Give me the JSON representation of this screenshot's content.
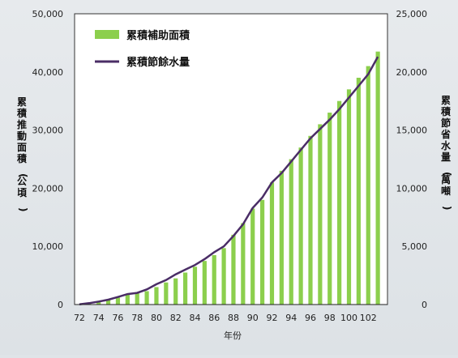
{
  "chart_data": {
    "type": "bar",
    "title": "",
    "xlabel": "年份",
    "ylabel_left": "累積推動面積(公頃)",
    "ylabel_right": "累積節省水量(萬噸)",
    "x_ticks": [
      "72",
      "74",
      "76",
      "78",
      "80",
      "82",
      "84",
      "86",
      "88",
      "90",
      "92",
      "94",
      "96",
      "98",
      "100",
      "102"
    ],
    "x": [
      72,
      73,
      74,
      75,
      76,
      77,
      78,
      79,
      80,
      81,
      82,
      83,
      84,
      85,
      86,
      87,
      88,
      89,
      90,
      91,
      92,
      93,
      94,
      95,
      96,
      97,
      98,
      99,
      100,
      101,
      102,
      103
    ],
    "ylim_left": [
      0,
      50000
    ],
    "ylim_right": [
      0,
      25000
    ],
    "yticks_left": [
      "0",
      "10,000",
      "20,000",
      "30,000",
      "40,000",
      "50,000"
    ],
    "yticks_right": [
      "0",
      "5,000",
      "10,000",
      "15,000",
      "20,000",
      "25,000"
    ],
    "legend_position": "top-left",
    "series": [
      {
        "name": "累積補助面積",
        "type": "bar",
        "axis": "left",
        "color": "#8ccf4d",
        "values": [
          50,
          200,
          400,
          800,
          1200,
          1700,
          2000,
          2300,
          3000,
          3800,
          4500,
          5500,
          6500,
          7500,
          8500,
          9700,
          12000,
          14000,
          16500,
          18000,
          21000,
          23000,
          25000,
          27000,
          29000,
          31000,
          33000,
          35000,
          37000,
          39000,
          41000,
          43500
        ]
      },
      {
        "name": "累積節餘水量",
        "type": "line",
        "axis": "right",
        "color": "#4a2d66",
        "values": [
          20,
          120,
          250,
          420,
          650,
          900,
          1000,
          1300,
          1750,
          2100,
          2600,
          3000,
          3400,
          3900,
          4500,
          5000,
          5900,
          6900,
          8300,
          9200,
          10500,
          11300,
          12300,
          13300,
          14300,
          15100,
          15900,
          16800,
          17800,
          18800,
          19800,
          21300
        ]
      }
    ]
  }
}
